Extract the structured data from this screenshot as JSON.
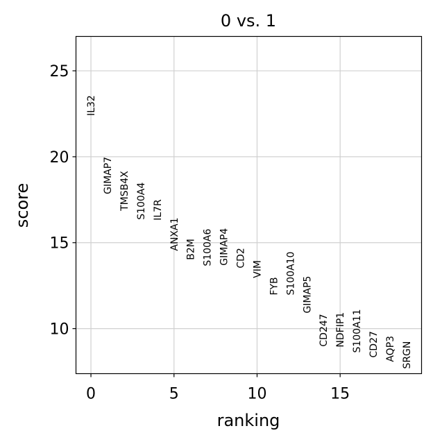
{
  "chart_data": {
    "type": "scatter",
    "title": "0 vs. 1",
    "xlabel": "ranking",
    "ylabel": "score",
    "xlim": [
      -0.9,
      19.9
    ],
    "ylim": [
      7.38,
      27.0
    ],
    "xticks": [
      0,
      5,
      10,
      15
    ],
    "yticks": [
      10,
      15,
      20,
      25
    ],
    "grid": true,
    "genes": [
      "IL32",
      "GIMAP7",
      "TMSB4X",
      "S100A4",
      "IL7R",
      "ANXA1",
      "B2M",
      "S100A6",
      "GIMAP4",
      "CD2",
      "VIM",
      "FYB",
      "S100A10",
      "GIMAP5",
      "CD247",
      "NDFIP1",
      "S100A11",
      "CD27",
      "AQP3",
      "SRGN"
    ],
    "scores": [
      22.38,
      17.82,
      16.85,
      16.33,
      16.29,
      14.52,
      13.99,
      13.63,
      13.67,
      13.51,
      12.94,
      11.94,
      11.94,
      10.89,
      8.95,
      8.91,
      8.59,
      8.31,
      8.06,
      7.66
    ]
  }
}
